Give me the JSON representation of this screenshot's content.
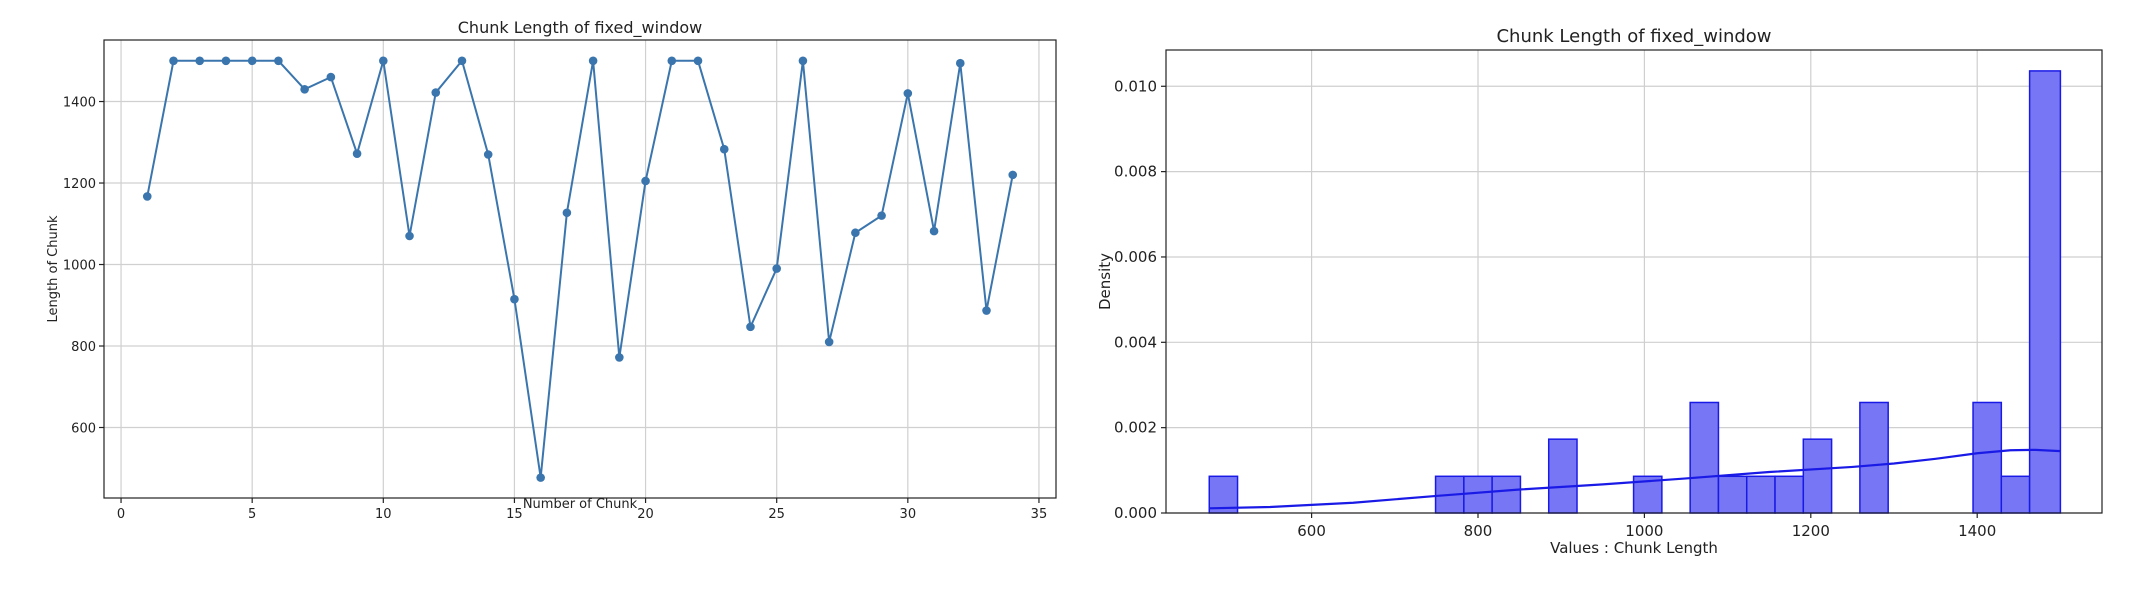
{
  "chart_data": [
    {
      "type": "line",
      "title": "Chunk Length of fixed_window",
      "xlabel": "Number of Chunk",
      "ylabel": "Length of Chunk",
      "xlim": [
        -0.65,
        35.65
      ],
      "ylim": [
        427,
        1551
      ],
      "xticks": [
        0,
        5,
        10,
        15,
        20,
        25,
        30,
        35
      ],
      "yticks": [
        600,
        800,
        1000,
        1200,
        1400
      ],
      "grid": true,
      "marker": "circle",
      "color": "#3a75ad",
      "x": [
        1,
        2,
        3,
        4,
        5,
        6,
        7,
        8,
        9,
        10,
        11,
        12,
        13,
        14,
        15,
        16,
        17,
        18,
        19,
        20,
        21,
        22,
        23,
        24,
        25,
        26,
        27,
        28,
        29,
        30,
        31,
        32,
        33,
        34
      ],
      "values": [
        1167,
        1500,
        1500,
        1500,
        1500,
        1500,
        1430,
        1460,
        1272,
        1500,
        1070,
        1422,
        1500,
        1270,
        915,
        477,
        1127,
        1500,
        772,
        1205,
        1500,
        1500,
        1283,
        847,
        990,
        1500,
        810,
        1078,
        1120,
        1420,
        1082,
        1494,
        887,
        1220
      ]
    },
    {
      "type": "histogram",
      "title": "Chunk Length of fixed_window",
      "xlabel": "Values : Chunk Length",
      "ylabel": "Density",
      "xlim": [
        425,
        1550
      ],
      "ylim": [
        0,
        0.01085
      ],
      "xticks": [
        600,
        800,
        1000,
        1200,
        1400
      ],
      "yticks": [
        0.0,
        0.002,
        0.004,
        0.006,
        0.008,
        0.01
      ],
      "ytick_labels": [
        "0.000",
        "0.002",
        "0.004",
        "0.006",
        "0.008",
        "0.010"
      ],
      "grid": true,
      "bar_color": "#7777f5",
      "edge_color": "#1a1ae6",
      "kde_color": "#1a1ae6",
      "bins": [
        {
          "x0": 477,
          "x1": 511,
          "density": 0.00086
        },
        {
          "x0": 511,
          "x1": 545,
          "density": 0
        },
        {
          "x0": 545,
          "x1": 579,
          "density": 0
        },
        {
          "x0": 579,
          "x1": 613,
          "density": 0
        },
        {
          "x0": 613,
          "x1": 647,
          "density": 0
        },
        {
          "x0": 647,
          "x1": 681,
          "density": 0
        },
        {
          "x0": 681,
          "x1": 715,
          "density": 0
        },
        {
          "x0": 715,
          "x1": 749,
          "density": 0
        },
        {
          "x0": 749,
          "x1": 783,
          "density": 0.00086
        },
        {
          "x0": 783,
          "x1": 817,
          "density": 0.00086
        },
        {
          "x0": 817,
          "x1": 851,
          "density": 0.00086
        },
        {
          "x0": 851,
          "x1": 885,
          "density": 0
        },
        {
          "x0": 885,
          "x1": 919,
          "density": 0.00173
        },
        {
          "x0": 919,
          "x1": 953,
          "density": 0
        },
        {
          "x0": 953,
          "x1": 987,
          "density": 0
        },
        {
          "x0": 987,
          "x1": 1021,
          "density": 0.00086
        },
        {
          "x0": 1021,
          "x1": 1055,
          "density": 0
        },
        {
          "x0": 1055,
          "x1": 1089,
          "density": 0.00259
        },
        {
          "x0": 1089,
          "x1": 1123,
          "density": 0.00086
        },
        {
          "x0": 1123,
          "x1": 1157,
          "density": 0.00086
        },
        {
          "x0": 1157,
          "x1": 1191,
          "density": 0.00086
        },
        {
          "x0": 1191,
          "x1": 1225,
          "density": 0.00173
        },
        {
          "x0": 1225,
          "x1": 1259,
          "density": 0
        },
        {
          "x0": 1259,
          "x1": 1293,
          "density": 0.00259
        },
        {
          "x0": 1293,
          "x1": 1327,
          "density": 0
        },
        {
          "x0": 1327,
          "x1": 1361,
          "density": 0
        },
        {
          "x0": 1361,
          "x1": 1395,
          "density": 0
        },
        {
          "x0": 1395,
          "x1": 1429,
          "density": 0.00259
        },
        {
          "x0": 1429,
          "x1": 1463,
          "density": 0.00086
        },
        {
          "x0": 1463,
          "x1": 1500,
          "density": 0.01036
        }
      ],
      "kde": {
        "x": [
          477,
          550,
          650,
          750,
          850,
          950,
          1050,
          1150,
          1250,
          1300,
          1350,
          1400,
          1440,
          1470,
          1500
        ],
        "y": [
          0.00011,
          0.00014,
          0.00024,
          0.0004,
          0.00055,
          0.00067,
          0.00081,
          0.00096,
          0.00108,
          0.00116,
          0.00127,
          0.0014,
          0.00147,
          0.00148,
          0.00145
        ]
      }
    }
  ]
}
